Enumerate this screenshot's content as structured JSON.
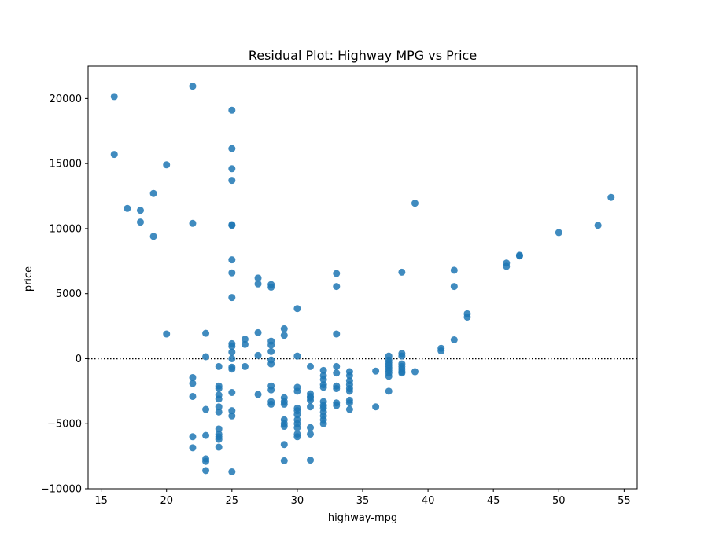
{
  "chart_data": {
    "type": "scatter",
    "title": "Residual Plot: Highway MPG vs Price",
    "xlabel": "highway-mpg",
    "ylabel": "price",
    "xlim": [
      14,
      56
    ],
    "ylim": [
      -10000,
      22500
    ],
    "xticks": [
      15,
      20,
      25,
      30,
      35,
      40,
      45,
      50,
      55
    ],
    "yticks": [
      -10000,
      -5000,
      0,
      5000,
      10000,
      15000,
      20000
    ],
    "xtick_labels": [
      "15",
      "20",
      "25",
      "30",
      "35",
      "40",
      "45",
      "50",
      "55"
    ],
    "ytick_labels": [
      "−10000",
      "−5000",
      "0",
      "5000",
      "10000",
      "15000",
      "20000"
    ],
    "reference_line": {
      "y": 0,
      "style": "dotted",
      "color": "#000000"
    },
    "grid": false,
    "colors": {
      "points": "#1f77b4"
    },
    "points": [
      [
        16,
        20150
      ],
      [
        16,
        15700
      ],
      [
        17,
        11550
      ],
      [
        18,
        11400
      ],
      [
        18,
        10500
      ],
      [
        19,
        12700
      ],
      [
        19,
        9400
      ],
      [
        20,
        14900
      ],
      [
        20,
        1900
      ],
      [
        22,
        20950
      ],
      [
        22,
        10400
      ],
      [
        22,
        -1450
      ],
      [
        22,
        -1900
      ],
      [
        22,
        -2900
      ],
      [
        22,
        -6000
      ],
      [
        22,
        -6850
      ],
      [
        23,
        1950
      ],
      [
        23,
        150
      ],
      [
        23,
        -3900
      ],
      [
        23,
        -5900
      ],
      [
        23,
        -7700
      ],
      [
        23,
        -7900
      ],
      [
        23,
        -8600
      ],
      [
        24,
        -600
      ],
      [
        24,
        -2100
      ],
      [
        24,
        -2300
      ],
      [
        24,
        -2800
      ],
      [
        24,
        -3100
      ],
      [
        24,
        -3700
      ],
      [
        24,
        -4100
      ],
      [
        24,
        -5400
      ],
      [
        24,
        -5800
      ],
      [
        24,
        -6000
      ],
      [
        24,
        -6200
      ],
      [
        24,
        -6800
      ],
      [
        25,
        19100
      ],
      [
        25,
        16150
      ],
      [
        25,
        14600
      ],
      [
        25,
        13700
      ],
      [
        25,
        10300
      ],
      [
        25,
        10250
      ],
      [
        25,
        7600
      ],
      [
        25,
        6600
      ],
      [
        25,
        4700
      ],
      [
        25,
        1150
      ],
      [
        25,
        950
      ],
      [
        25,
        500
      ],
      [
        25,
        0
      ],
      [
        25,
        -650
      ],
      [
        25,
        -800
      ],
      [
        25,
        -2600
      ],
      [
        25,
        -4000
      ],
      [
        25,
        -4400
      ],
      [
        25,
        -8700
      ],
      [
        26,
        1500
      ],
      [
        26,
        1100
      ],
      [
        26,
        -600
      ],
      [
        27,
        6200
      ],
      [
        27,
        5750
      ],
      [
        27,
        2000
      ],
      [
        27,
        250
      ],
      [
        27,
        -2750
      ],
      [
        28,
        5700
      ],
      [
        28,
        5500
      ],
      [
        28,
        1350
      ],
      [
        28,
        1050
      ],
      [
        28,
        550
      ],
      [
        28,
        -100
      ],
      [
        28,
        -400
      ],
      [
        28,
        -2100
      ],
      [
        28,
        -2400
      ],
      [
        28,
        -3300
      ],
      [
        28,
        -3500
      ],
      [
        29,
        2300
      ],
      [
        29,
        1800
      ],
      [
        29,
        -3000
      ],
      [
        29,
        -3300
      ],
      [
        29,
        -3500
      ],
      [
        29,
        -4700
      ],
      [
        29,
        -5000
      ],
      [
        29,
        -5200
      ],
      [
        29,
        -6600
      ],
      [
        29,
        -7850
      ],
      [
        30,
        3850
      ],
      [
        30,
        200
      ],
      [
        30,
        -2200
      ],
      [
        30,
        -2500
      ],
      [
        30,
        -3800
      ],
      [
        30,
        -4000
      ],
      [
        30,
        -4300
      ],
      [
        30,
        -4700
      ],
      [
        30,
        -5000
      ],
      [
        30,
        -5300
      ],
      [
        30,
        -5800
      ],
      [
        30,
        -6000
      ],
      [
        31,
        -600
      ],
      [
        31,
        -2700
      ],
      [
        31,
        -2900
      ],
      [
        31,
        -3000
      ],
      [
        31,
        -3200
      ],
      [
        31,
        -3700
      ],
      [
        31,
        -5300
      ],
      [
        31,
        -5800
      ],
      [
        31,
        -7800
      ],
      [
        32,
        -900
      ],
      [
        32,
        -1300
      ],
      [
        32,
        -1600
      ],
      [
        32,
        -2000
      ],
      [
        32,
        -2200
      ],
      [
        32,
        -3300
      ],
      [
        32,
        -3600
      ],
      [
        32,
        -3800
      ],
      [
        32,
        -4100
      ],
      [
        32,
        -4400
      ],
      [
        32,
        -4700
      ],
      [
        32,
        -5000
      ],
      [
        33,
        6550
      ],
      [
        33,
        5550
      ],
      [
        33,
        1900
      ],
      [
        33,
        -600
      ],
      [
        33,
        -1100
      ],
      [
        33,
        -2100
      ],
      [
        33,
        -2300
      ],
      [
        33,
        -3400
      ],
      [
        33,
        -3600
      ],
      [
        34,
        -1000
      ],
      [
        34,
        -1300
      ],
      [
        34,
        -1700
      ],
      [
        34,
        -2000
      ],
      [
        34,
        -2300
      ],
      [
        34,
        -2500
      ],
      [
        34,
        -3200
      ],
      [
        34,
        -3400
      ],
      [
        34,
        -3900
      ],
      [
        36,
        -950
      ],
      [
        36,
        -3700
      ],
      [
        37,
        200
      ],
      [
        37,
        -100
      ],
      [
        37,
        -300
      ],
      [
        37,
        -500
      ],
      [
        37,
        -700
      ],
      [
        37,
        -900
      ],
      [
        37,
        -1100
      ],
      [
        37,
        -1350
      ],
      [
        37,
        -2500
      ],
      [
        38,
        6650
      ],
      [
        38,
        400
      ],
      [
        38,
        200
      ],
      [
        38,
        -400
      ],
      [
        38,
        -600
      ],
      [
        38,
        -800
      ],
      [
        38,
        -1000
      ],
      [
        38,
        -1100
      ],
      [
        39,
        11950
      ],
      [
        39,
        -1000
      ],
      [
        41,
        800
      ],
      [
        41,
        600
      ],
      [
        42,
        6800
      ],
      [
        42,
        5550
      ],
      [
        42,
        1450
      ],
      [
        43,
        3450
      ],
      [
        43,
        3200
      ],
      [
        46,
        7350
      ],
      [
        46,
        7100
      ],
      [
        47,
        7950
      ],
      [
        47,
        7900
      ],
      [
        50,
        9700
      ],
      [
        53,
        10250
      ],
      [
        54,
        12400
      ]
    ]
  }
}
